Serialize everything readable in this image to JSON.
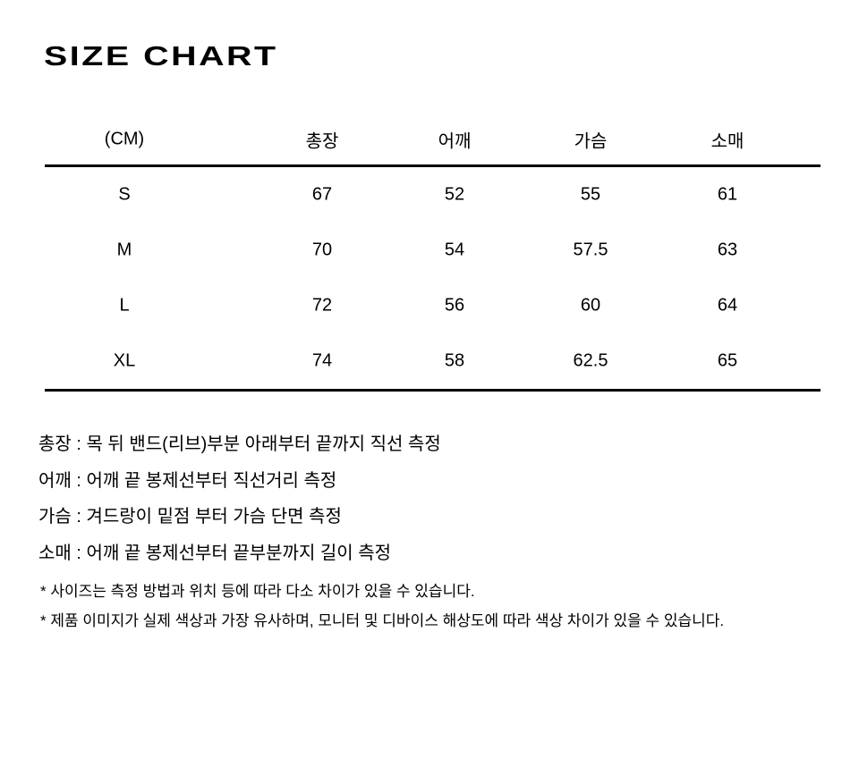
{
  "title": "SIZE CHART",
  "table": {
    "columns": [
      "(CM)",
      "총장",
      "어깨",
      "가슴",
      "소매"
    ],
    "rows": [
      {
        "size": "S",
        "values": [
          "67",
          "52",
          "55",
          "61"
        ]
      },
      {
        "size": "M",
        "values": [
          "70",
          "54",
          "57.5",
          "63"
        ]
      },
      {
        "size": "L",
        "values": [
          "72",
          "56",
          "60",
          "64"
        ]
      },
      {
        "size": "XL",
        "values": [
          "74",
          "58",
          "62.5",
          "65"
        ]
      }
    ]
  },
  "notes": [
    "총장 : 목 뒤 밴드(리브)부분 아래부터 끝까지 직선 측정",
    "어깨 : 어깨 끝 봉제선부터 직선거리 측정",
    "가슴 : 겨드랑이 밑점 부터 가슴 단면 측정",
    "소매 : 어깨 끝 봉제선부터 끝부분까지 길이 측정"
  ],
  "footnotes": [
    "* 사이즈는 측정 방법과 위치 등에 따라 다소 차이가 있을 수 있습니다.",
    "* 제품 이미지가 실제 색상과 가장 유사하며, 모니터 및 디바이스 해상도에 따라 색상 차이가 있을 수 있습니다."
  ],
  "colors": {
    "background": "#ffffff",
    "text": "#000000",
    "rule": "#000000"
  }
}
